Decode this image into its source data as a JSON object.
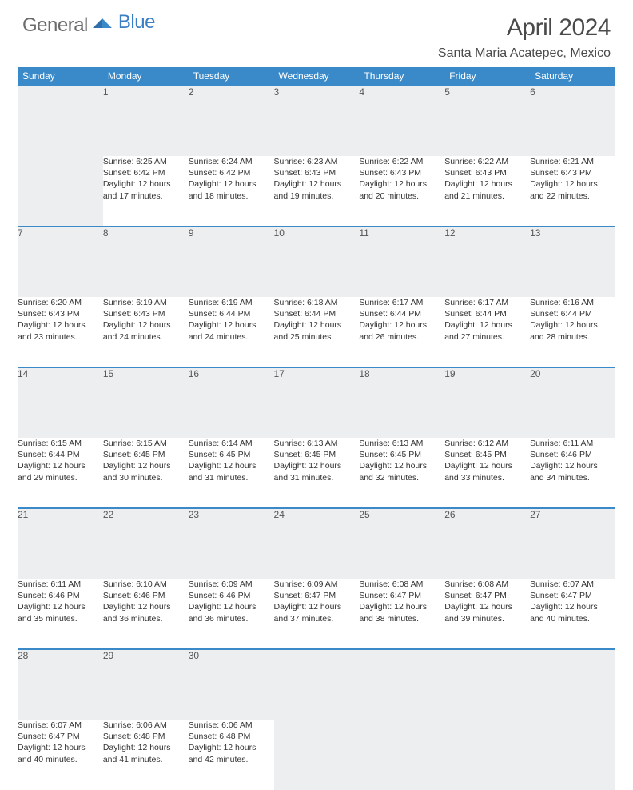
{
  "logo": {
    "general": "General",
    "blue": "Blue"
  },
  "title": "April 2024",
  "location": "Santa Maria Acatepec, Mexico",
  "colors": {
    "header_bg": "#3a89c9",
    "header_text": "#ffffff",
    "daynum_bg": "#eceeef",
    "border": "#3a89c9",
    "logo_gray": "#6b6b6b",
    "logo_blue": "#3a7fc4",
    "text": "#333333"
  },
  "day_headers": [
    "Sunday",
    "Monday",
    "Tuesday",
    "Wednesday",
    "Thursday",
    "Friday",
    "Saturday"
  ],
  "weeks": [
    {
      "nums": [
        "",
        "1",
        "2",
        "3",
        "4",
        "5",
        "6"
      ],
      "cells": [
        null,
        {
          "sunrise": "Sunrise: 6:25 AM",
          "sunset": "Sunset: 6:42 PM",
          "dl1": "Daylight: 12 hours",
          "dl2": "and 17 minutes."
        },
        {
          "sunrise": "Sunrise: 6:24 AM",
          "sunset": "Sunset: 6:42 PM",
          "dl1": "Daylight: 12 hours",
          "dl2": "and 18 minutes."
        },
        {
          "sunrise": "Sunrise: 6:23 AM",
          "sunset": "Sunset: 6:43 PM",
          "dl1": "Daylight: 12 hours",
          "dl2": "and 19 minutes."
        },
        {
          "sunrise": "Sunrise: 6:22 AM",
          "sunset": "Sunset: 6:43 PM",
          "dl1": "Daylight: 12 hours",
          "dl2": "and 20 minutes."
        },
        {
          "sunrise": "Sunrise: 6:22 AM",
          "sunset": "Sunset: 6:43 PM",
          "dl1": "Daylight: 12 hours",
          "dl2": "and 21 minutes."
        },
        {
          "sunrise": "Sunrise: 6:21 AM",
          "sunset": "Sunset: 6:43 PM",
          "dl1": "Daylight: 12 hours",
          "dl2": "and 22 minutes."
        }
      ]
    },
    {
      "nums": [
        "7",
        "8",
        "9",
        "10",
        "11",
        "12",
        "13"
      ],
      "cells": [
        {
          "sunrise": "Sunrise: 6:20 AM",
          "sunset": "Sunset: 6:43 PM",
          "dl1": "Daylight: 12 hours",
          "dl2": "and 23 minutes."
        },
        {
          "sunrise": "Sunrise: 6:19 AM",
          "sunset": "Sunset: 6:43 PM",
          "dl1": "Daylight: 12 hours",
          "dl2": "and 24 minutes."
        },
        {
          "sunrise": "Sunrise: 6:19 AM",
          "sunset": "Sunset: 6:44 PM",
          "dl1": "Daylight: 12 hours",
          "dl2": "and 24 minutes."
        },
        {
          "sunrise": "Sunrise: 6:18 AM",
          "sunset": "Sunset: 6:44 PM",
          "dl1": "Daylight: 12 hours",
          "dl2": "and 25 minutes."
        },
        {
          "sunrise": "Sunrise: 6:17 AM",
          "sunset": "Sunset: 6:44 PM",
          "dl1": "Daylight: 12 hours",
          "dl2": "and 26 minutes."
        },
        {
          "sunrise": "Sunrise: 6:17 AM",
          "sunset": "Sunset: 6:44 PM",
          "dl1": "Daylight: 12 hours",
          "dl2": "and 27 minutes."
        },
        {
          "sunrise": "Sunrise: 6:16 AM",
          "sunset": "Sunset: 6:44 PM",
          "dl1": "Daylight: 12 hours",
          "dl2": "and 28 minutes."
        }
      ]
    },
    {
      "nums": [
        "14",
        "15",
        "16",
        "17",
        "18",
        "19",
        "20"
      ],
      "cells": [
        {
          "sunrise": "Sunrise: 6:15 AM",
          "sunset": "Sunset: 6:44 PM",
          "dl1": "Daylight: 12 hours",
          "dl2": "and 29 minutes."
        },
        {
          "sunrise": "Sunrise: 6:15 AM",
          "sunset": "Sunset: 6:45 PM",
          "dl1": "Daylight: 12 hours",
          "dl2": "and 30 minutes."
        },
        {
          "sunrise": "Sunrise: 6:14 AM",
          "sunset": "Sunset: 6:45 PM",
          "dl1": "Daylight: 12 hours",
          "dl2": "and 31 minutes."
        },
        {
          "sunrise": "Sunrise: 6:13 AM",
          "sunset": "Sunset: 6:45 PM",
          "dl1": "Daylight: 12 hours",
          "dl2": "and 31 minutes."
        },
        {
          "sunrise": "Sunrise: 6:13 AM",
          "sunset": "Sunset: 6:45 PM",
          "dl1": "Daylight: 12 hours",
          "dl2": "and 32 minutes."
        },
        {
          "sunrise": "Sunrise: 6:12 AM",
          "sunset": "Sunset: 6:45 PM",
          "dl1": "Daylight: 12 hours",
          "dl2": "and 33 minutes."
        },
        {
          "sunrise": "Sunrise: 6:11 AM",
          "sunset": "Sunset: 6:46 PM",
          "dl1": "Daylight: 12 hours",
          "dl2": "and 34 minutes."
        }
      ]
    },
    {
      "nums": [
        "21",
        "22",
        "23",
        "24",
        "25",
        "26",
        "27"
      ],
      "cells": [
        {
          "sunrise": "Sunrise: 6:11 AM",
          "sunset": "Sunset: 6:46 PM",
          "dl1": "Daylight: 12 hours",
          "dl2": "and 35 minutes."
        },
        {
          "sunrise": "Sunrise: 6:10 AM",
          "sunset": "Sunset: 6:46 PM",
          "dl1": "Daylight: 12 hours",
          "dl2": "and 36 minutes."
        },
        {
          "sunrise": "Sunrise: 6:09 AM",
          "sunset": "Sunset: 6:46 PM",
          "dl1": "Daylight: 12 hours",
          "dl2": "and 36 minutes."
        },
        {
          "sunrise": "Sunrise: 6:09 AM",
          "sunset": "Sunset: 6:47 PM",
          "dl1": "Daylight: 12 hours",
          "dl2": "and 37 minutes."
        },
        {
          "sunrise": "Sunrise: 6:08 AM",
          "sunset": "Sunset: 6:47 PM",
          "dl1": "Daylight: 12 hours",
          "dl2": "and 38 minutes."
        },
        {
          "sunrise": "Sunrise: 6:08 AM",
          "sunset": "Sunset: 6:47 PM",
          "dl1": "Daylight: 12 hours",
          "dl2": "and 39 minutes."
        },
        {
          "sunrise": "Sunrise: 6:07 AM",
          "sunset": "Sunset: 6:47 PM",
          "dl1": "Daylight: 12 hours",
          "dl2": "and 40 minutes."
        }
      ]
    },
    {
      "nums": [
        "28",
        "29",
        "30",
        "",
        "",
        "",
        ""
      ],
      "cells": [
        {
          "sunrise": "Sunrise: 6:07 AM",
          "sunset": "Sunset: 6:47 PM",
          "dl1": "Daylight: 12 hours",
          "dl2": "and 40 minutes."
        },
        {
          "sunrise": "Sunrise: 6:06 AM",
          "sunset": "Sunset: 6:48 PM",
          "dl1": "Daylight: 12 hours",
          "dl2": "and 41 minutes."
        },
        {
          "sunrise": "Sunrise: 6:06 AM",
          "sunset": "Sunset: 6:48 PM",
          "dl1": "Daylight: 12 hours",
          "dl2": "and 42 minutes."
        },
        null,
        null,
        null,
        null
      ]
    }
  ]
}
